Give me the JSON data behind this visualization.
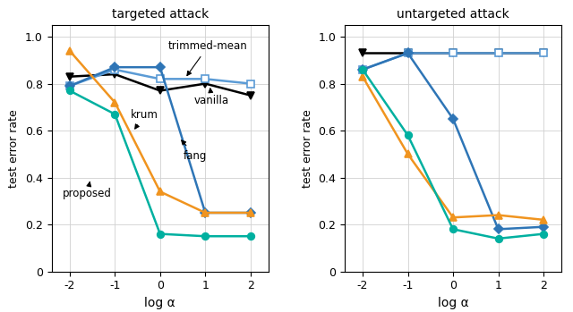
{
  "x": [
    -2,
    -1,
    0,
    1,
    2
  ],
  "targeted": {
    "vanilla": [
      0.83,
      0.84,
      0.77,
      0.8,
      0.75
    ],
    "trimmed_mean": [
      0.79,
      0.86,
      0.82,
      0.82,
      0.8
    ],
    "fang": [
      0.79,
      0.87,
      0.87,
      0.25,
      0.25
    ],
    "krum": [
      0.94,
      0.72,
      0.34,
      0.25,
      0.25
    ],
    "proposed": [
      0.77,
      0.67,
      0.16,
      0.15,
      0.15
    ]
  },
  "untargeted": {
    "vanilla": [
      0.93,
      0.93,
      0.93,
      0.93,
      0.93
    ],
    "trimmed_mean": [
      0.86,
      0.93,
      0.93,
      0.93,
      0.93
    ],
    "fang": [
      0.86,
      0.93,
      0.65,
      0.18,
      0.19
    ],
    "krum": [
      0.83,
      0.5,
      0.23,
      0.24,
      0.22
    ],
    "proposed": [
      0.86,
      0.58,
      0.18,
      0.14,
      0.16
    ]
  },
  "colors": {
    "vanilla": "#000000",
    "trimmed_mean": "#5B9BD5",
    "fang": "#2E75B6",
    "krum": "#F0941F",
    "proposed": "#00B0A0"
  },
  "markers": {
    "vanilla": "v",
    "trimmed_mean": "s",
    "fang": "D",
    "krum": "^",
    "proposed": "o"
  },
  "title_targeted": "targeted attack",
  "title_untargeted": "untargeted attack",
  "xlabel": "log α",
  "ylabel": "test error rate",
  "ylim": [
    0,
    1.05
  ],
  "xticks": [
    -2,
    -1,
    0,
    1,
    2
  ],
  "yticks": [
    0,
    0.2,
    0.4,
    0.6,
    0.8,
    1.0
  ]
}
